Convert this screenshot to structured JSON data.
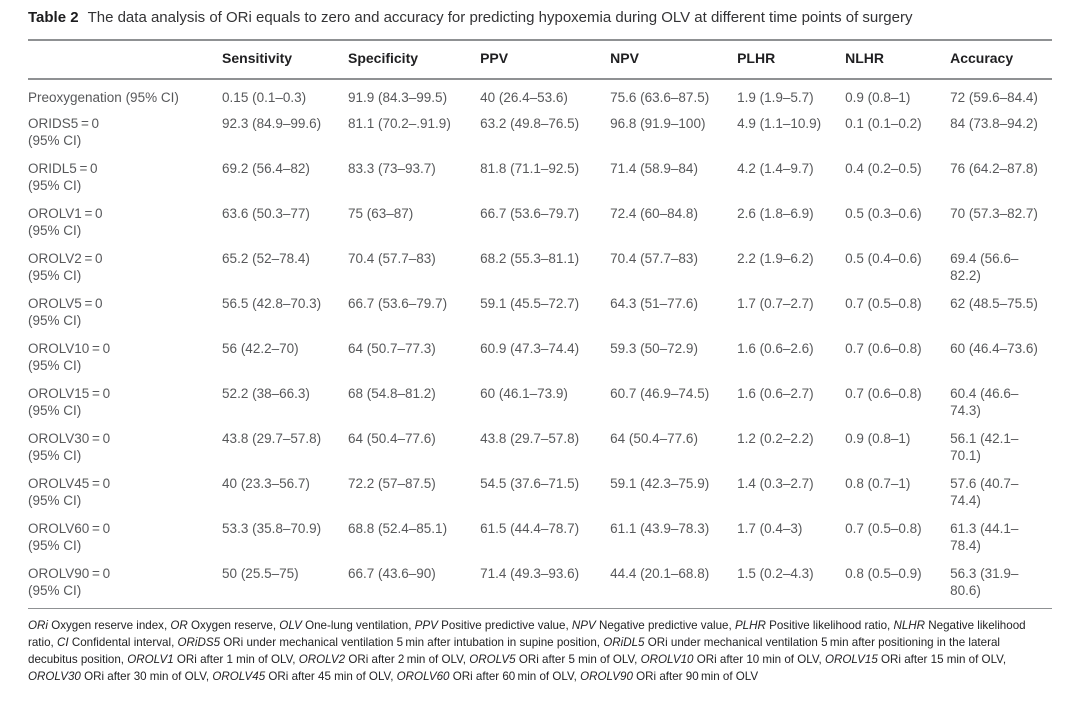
{
  "title": {
    "label": "Table 2",
    "text": "The data analysis of ORi equals to zero and accuracy for predicting hypoxemia during OLV at different time points of surgery"
  },
  "colors": {
    "rule": "#8f9193",
    "body_text": "#57585a",
    "heading_text": "#1f1f21",
    "background": "#ffffff"
  },
  "table": {
    "columns": [
      "",
      "Sensitivity",
      "Specificity",
      "PPV",
      "NPV",
      "PLHR",
      "NLHR",
      "Accuracy"
    ],
    "column_keys": [
      "row-label",
      "sensitivity",
      "specificity",
      "ppv",
      "npv",
      "plhr",
      "nlhr",
      "accuracy"
    ],
    "column_widths_pct": [
      18.95,
      12.3,
      12.9,
      12.7,
      12.4,
      10.55,
      10.25,
      9.95
    ],
    "rows": [
      {
        "label": "Preoxygenation (95% CI)",
        "label2": "",
        "values": [
          "0.15 (0.1–0.3)",
          "91.9 (84.3–99.5)",
          "40 (26.4–53.6)",
          "75.6 (63.6–87.5)",
          "1.9 (1.9–5.7)",
          "0.9 (0.8–1)",
          "72 (59.6–84.4)"
        ]
      },
      {
        "label": "ORIDS5 = 0",
        "label2": "(95% CI)",
        "values": [
          "92.3 (84.9–99.6)",
          "81.1 (70.2–.91.9)",
          "63.2 (49.8–76.5)",
          "96.8 (91.9–100)",
          "4.9 (1.1–10.9)",
          "0.1 (0.1–0.2)",
          "84 (73.8–94.2)"
        ]
      },
      {
        "label": "ORIDL5 = 0",
        "label2": "(95% CI)",
        "values": [
          "69.2 (56.4–82)",
          "83.3 (73–93.7)",
          "81.8 (71.1–92.5)",
          "71.4 (58.9–84)",
          "4.2 (1.4–9.7)",
          "0.4 (0.2–0.5)",
          "76 (64.2–87.8)"
        ]
      },
      {
        "label": "OROLV1 = 0",
        "label2": "(95% CI)",
        "values": [
          "63.6 (50.3–77)",
          "75 (63–87)",
          "66.7 (53.6–79.7)",
          "72.4 (60–84.8)",
          "2.6 (1.8–6.9)",
          "0.5 (0.3–0.6)",
          "70 (57.3–82.7)"
        ]
      },
      {
        "label": "OROLV2 = 0",
        "label2": "(95% CI)",
        "values": [
          "65.2 (52–78.4)",
          "70.4 (57.7–83)",
          "68.2 (55.3–81.1)",
          "70.4 (57.7–83)",
          "2.2 (1.9–6.2)",
          "0.5 (0.4–0.6)",
          "69.4 (56.6–82.2)"
        ]
      },
      {
        "label": "OROLV5 = 0",
        "label2": "(95% CI)",
        "values": [
          "56.5 (42.8–70.3)",
          "66.7 (53.6–79.7)",
          "59.1 (45.5–72.7)",
          "64.3 (51–77.6)",
          "1.7 (0.7–2.7)",
          "0.7 (0.5–0.8)",
          "62 (48.5–75.5)"
        ]
      },
      {
        "label": "OROLV10 = 0",
        "label2": "(95% CI)",
        "values": [
          "56 (42.2–70)",
          "64 (50.7–77.3)",
          "60.9 (47.3–74.4)",
          "59.3 (50–72.9)",
          "1.6 (0.6–2.6)",
          "0.7 (0.6–0.8)",
          "60 (46.4–73.6)"
        ]
      },
      {
        "label": "OROLV15 = 0",
        "label2": "(95% CI)",
        "values": [
          "52.2 (38–66.3)",
          "68 (54.8–81.2)",
          "60 (46.1–73.9)",
          "60.7 (46.9–74.5)",
          "1.6 (0.6–2.7)",
          "0.7 (0.6–0.8)",
          "60.4 (46.6–74.3)"
        ]
      },
      {
        "label": "OROLV30 = 0",
        "label2": "(95% CI)",
        "values": [
          "43.8 (29.7–57.8)",
          "64 (50.4–77.6)",
          "43.8 (29.7–57.8)",
          "64 (50.4–77.6)",
          "1.2 (0.2–2.2)",
          "0.9 (0.8–1)",
          "56.1 (42.1–70.1)"
        ]
      },
      {
        "label": "OROLV45 = 0",
        "label2": "(95% CI)",
        "values": [
          "40 (23.3–56.7)",
          "72.2 (57–87.5)",
          "54.5 (37.6–71.5)",
          "59.1 (42.3–75.9)",
          "1.4 (0.3–2.7)",
          "0.8 (0.7–1)",
          "57.6 (40.7–74.4)"
        ]
      },
      {
        "label": "OROLV60 = 0",
        "label2": "(95% CI)",
        "values": [
          "53.3 (35.8–70.9)",
          "68.8 (52.4–85.1)",
          "61.5 (44.4–78.7)",
          "61.1 (43.9–78.3)",
          "1.7 (0.4–3)",
          "0.7 (0.5–0.8)",
          "61.3 (44.1–78.4)"
        ]
      },
      {
        "label": "OROLV90 = 0",
        "label2": "(95% CI)",
        "values": [
          "50 (25.5–75)",
          "66.7 (43.6–90)",
          "71.4 (49.3–93.6)",
          "44.4 (20.1–68.8)",
          "1.5 (0.2–4.3)",
          "0.8 (0.5–0.9)",
          "56.3 (31.9–80.6)"
        ]
      }
    ]
  },
  "footnote": {
    "segments": [
      {
        "i": true,
        "t": "ORi"
      },
      {
        "i": false,
        "t": " Oxygen reserve index, "
      },
      {
        "i": true,
        "t": "OR"
      },
      {
        "i": false,
        "t": " Oxygen reserve, "
      },
      {
        "i": true,
        "t": "OLV"
      },
      {
        "i": false,
        "t": " One-lung ventilation, "
      },
      {
        "i": true,
        "t": "PPV"
      },
      {
        "i": false,
        "t": " Positive predictive value, "
      },
      {
        "i": true,
        "t": "NPV"
      },
      {
        "i": false,
        "t": " Negative predictive value, "
      },
      {
        "i": true,
        "t": "PLHR"
      },
      {
        "i": false,
        "t": " Positive likelihood ratio, "
      },
      {
        "i": true,
        "t": "NLHR"
      },
      {
        "i": false,
        "t": " Negative likelihood ratio, "
      },
      {
        "i": true,
        "t": "CI"
      },
      {
        "i": false,
        "t": " Confidental interval, "
      },
      {
        "i": true,
        "t": "ORiDS5"
      },
      {
        "i": false,
        "t": " ORi under mechanical ventilation 5 min after intubation in supine position, "
      },
      {
        "i": true,
        "t": "ORiDL5"
      },
      {
        "i": false,
        "t": " ORi under mechanical ventilation 5 min after positioning in the lateral decubitus position, "
      },
      {
        "i": true,
        "t": "OROLV1"
      },
      {
        "i": false,
        "t": " ORi after 1 min of OLV, "
      },
      {
        "i": true,
        "t": "OROLV2"
      },
      {
        "i": false,
        "t": " ORi after 2 min of OLV, "
      },
      {
        "i": true,
        "t": "OROLV5"
      },
      {
        "i": false,
        "t": " ORi after 5 min of OLV, "
      },
      {
        "i": true,
        "t": "OROLV10"
      },
      {
        "i": false,
        "t": " ORi after 10 min of OLV, "
      },
      {
        "i": true,
        "t": "OROLV15"
      },
      {
        "i": false,
        "t": " ORi after 15 min of OLV, "
      },
      {
        "i": true,
        "t": "OROLV30"
      },
      {
        "i": false,
        "t": " ORi after 30 min of OLV, "
      },
      {
        "i": true,
        "t": "OROLV45"
      },
      {
        "i": false,
        "t": " ORi after 45 min of OLV, "
      },
      {
        "i": true,
        "t": "OROLV60"
      },
      {
        "i": false,
        "t": " ORi after 60 min of OLV, "
      },
      {
        "i": true,
        "t": "OROLV90"
      },
      {
        "i": false,
        "t": " ORi after 90 min of OLV"
      }
    ]
  }
}
